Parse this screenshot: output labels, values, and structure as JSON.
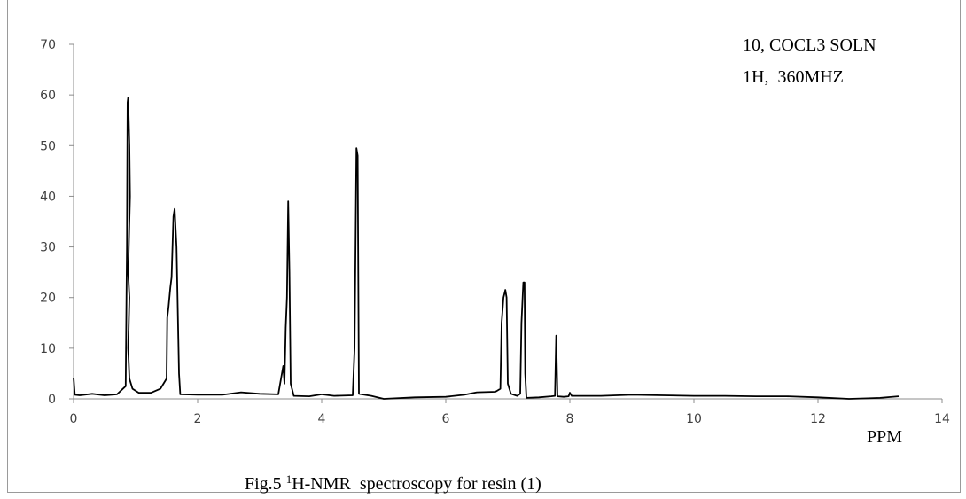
{
  "chart_data": {
    "type": "line",
    "xlim": [
      0,
      14
    ],
    "ylim": [
      0,
      70
    ],
    "x_ticks": [
      0,
      2,
      4,
      6,
      8,
      10,
      12,
      14
    ],
    "y_ticks": [
      0,
      10,
      20,
      30,
      40,
      50,
      60,
      70
    ],
    "x_tick_labels": [
      "0",
      "2",
      "4",
      "6",
      "8",
      "10",
      "12",
      "14"
    ],
    "y_tick_labels": [
      "0",
      "10",
      "20",
      "30",
      "40",
      "50",
      "60",
      "70"
    ],
    "xlabel": "PPM",
    "annotations": [
      "10, COCL3 SOLN",
      "1H,  360MHZ"
    ],
    "caption": {
      "prefix": "Fig.5 ",
      "superscript": "1",
      "text": "H-NMR  spectroscopy for resin (1)"
    },
    "series": [
      {
        "color": "#000000",
        "points": [
          [
            0.0,
            4.2
          ],
          [
            0.02,
            0.8
          ],
          [
            0.1,
            0.7
          ],
          [
            0.3,
            1.0
          ],
          [
            0.5,
            0.7
          ],
          [
            0.7,
            0.9
          ],
          [
            0.84,
            2.5
          ],
          [
            0.86,
            30
          ],
          [
            0.87,
            58.5
          ],
          [
            0.88,
            59.5
          ],
          [
            0.9,
            50
          ],
          [
            0.91,
            40
          ],
          [
            0.88,
            25
          ],
          [
            0.9,
            20
          ],
          [
            0.88,
            10
          ],
          [
            0.9,
            4
          ],
          [
            0.95,
            2
          ],
          [
            1.05,
            1.2
          ],
          [
            1.25,
            1.2
          ],
          [
            1.4,
            2
          ],
          [
            1.5,
            4
          ],
          [
            1.51,
            16
          ],
          [
            1.53,
            18
          ],
          [
            1.56,
            22
          ],
          [
            1.58,
            24
          ],
          [
            1.61,
            36
          ],
          [
            1.63,
            37.5
          ],
          [
            1.66,
            30
          ],
          [
            1.7,
            5
          ],
          [
            1.72,
            0.9
          ],
          [
            2.0,
            0.8
          ],
          [
            2.4,
            0.8
          ],
          [
            2.7,
            1.3
          ],
          [
            3.0,
            1.0
          ],
          [
            3.3,
            0.9
          ],
          [
            3.38,
            6.5
          ],
          [
            3.4,
            3
          ],
          [
            3.42,
            14
          ],
          [
            3.44,
            20
          ],
          [
            3.46,
            39
          ],
          [
            3.48,
            25
          ],
          [
            3.5,
            3
          ],
          [
            3.55,
            0.6
          ],
          [
            3.8,
            0.5
          ],
          [
            4.0,
            0.9
          ],
          [
            4.2,
            0.6
          ],
          [
            4.5,
            0.7
          ],
          [
            4.53,
            10
          ],
          [
            4.56,
            49.5
          ],
          [
            4.58,
            48
          ],
          [
            4.6,
            1.0
          ],
          [
            4.8,
            0.6
          ],
          [
            5.0,
            0.0
          ],
          [
            5.5,
            0.3
          ],
          [
            6.0,
            0.4
          ],
          [
            6.3,
            0.8
          ],
          [
            6.5,
            1.3
          ],
          [
            6.8,
            1.4
          ],
          [
            6.88,
            2.0
          ],
          [
            6.9,
            15
          ],
          [
            6.93,
            20
          ],
          [
            6.96,
            21.5
          ],
          [
            6.98,
            20
          ],
          [
            7.0,
            3
          ],
          [
            7.05,
            1.0
          ],
          [
            7.15,
            0.6
          ],
          [
            7.2,
            1.0
          ],
          [
            7.22,
            15
          ],
          [
            7.25,
            23
          ],
          [
            7.27,
            23
          ],
          [
            7.28,
            5
          ],
          [
            7.3,
            0.2
          ],
          [
            7.5,
            0.3
          ],
          [
            7.7,
            0.5
          ],
          [
            7.76,
            0.6
          ],
          [
            7.78,
            12.5
          ],
          [
            7.8,
            0.5
          ],
          [
            7.9,
            0.4
          ],
          [
            7.98,
            0.5
          ],
          [
            8.0,
            1.2
          ],
          [
            8.03,
            0.6
          ],
          [
            8.5,
            0.6
          ],
          [
            9.0,
            0.8
          ],
          [
            9.5,
            0.7
          ],
          [
            10.0,
            0.6
          ],
          [
            10.5,
            0.6
          ],
          [
            11.0,
            0.5
          ],
          [
            11.5,
            0.5
          ],
          [
            12.0,
            0.3
          ],
          [
            12.5,
            0.0
          ],
          [
            12.8,
            0.1
          ],
          [
            13.0,
            0.2
          ],
          [
            13.3,
            0.5
          ]
        ]
      }
    ]
  }
}
